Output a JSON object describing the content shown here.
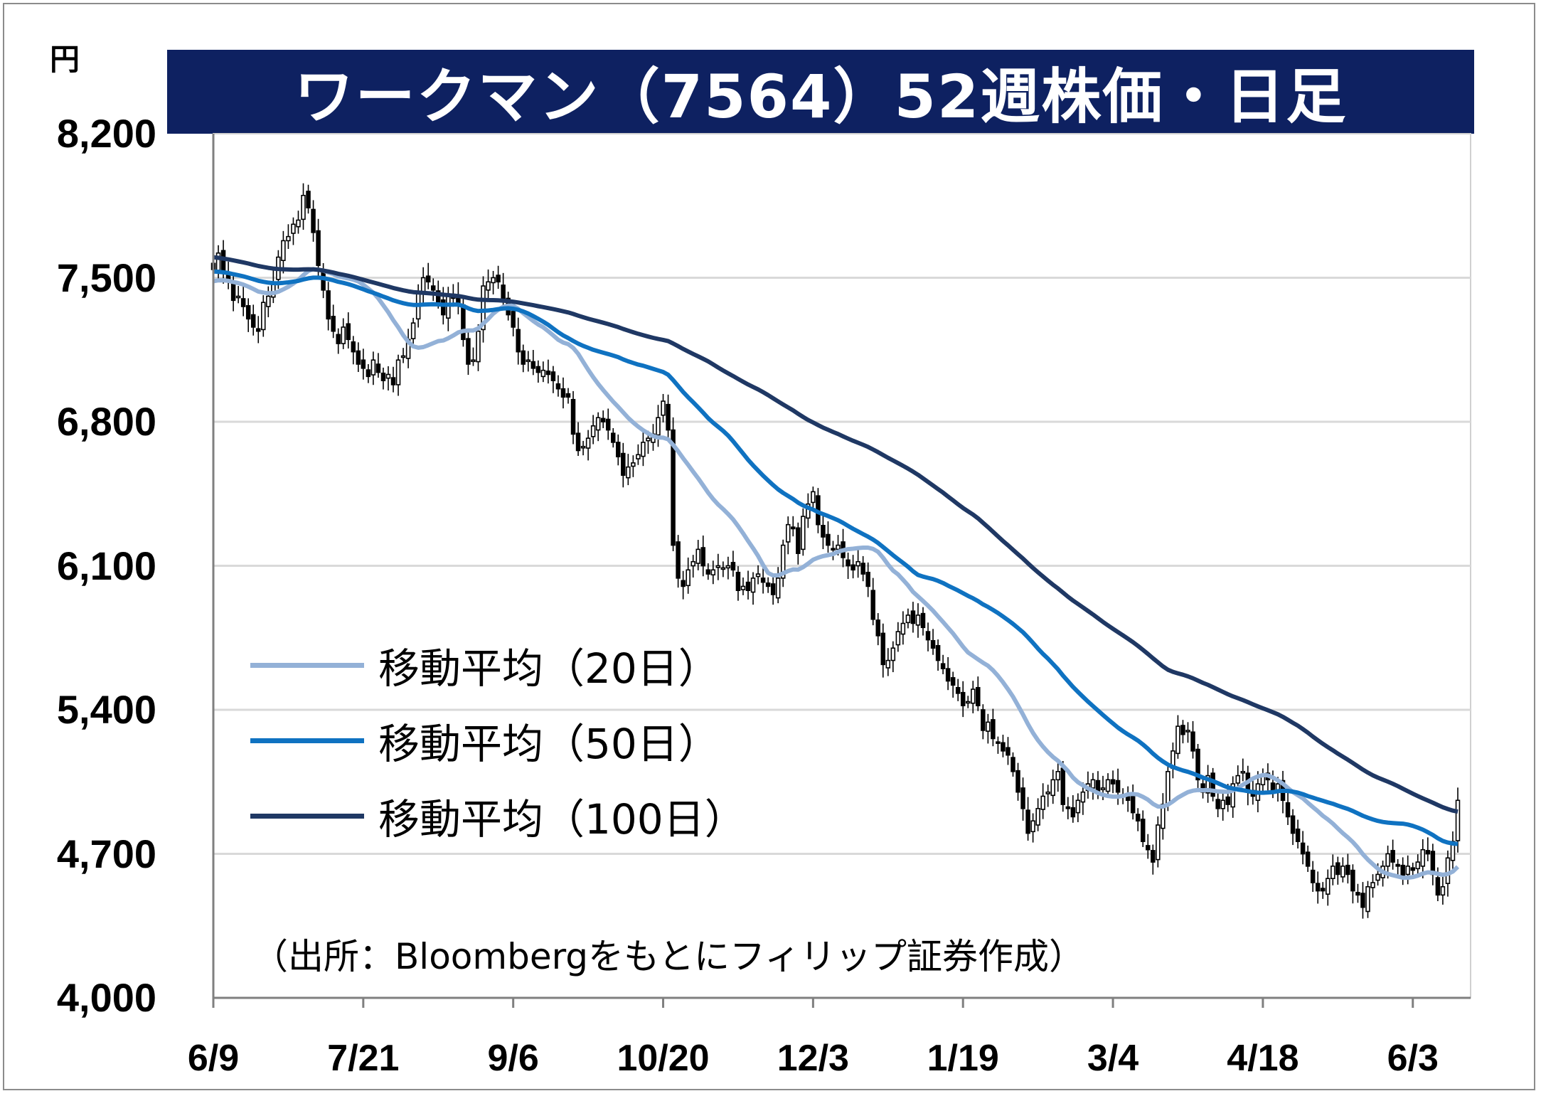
{
  "title": "ワークマン（7564）52週株価・日足",
  "unit": "円",
  "source": "（出所：Bloombergをもとにフィリップ証券作成）",
  "colors": {
    "title_bg": "#0e2161",
    "ma20": "#93b1d7",
    "ma50": "#0f72c1",
    "ma100": "#1f3864",
    "candle": "#000000",
    "grid": "#d9d9d9"
  },
  "chart_data": {
    "type": "candlestick",
    "ylim": [
      4000,
      8200
    ],
    "y_ticks": [
      "8,200",
      "7,500",
      "6,800",
      "6,100",
      "5,400",
      "4,700",
      "4,000"
    ],
    "y_tick_values": [
      8200,
      7500,
      6800,
      6100,
      5400,
      4700,
      4000
    ],
    "x_ticks": [
      "6/9",
      "7/21",
      "9/6",
      "10/20",
      "12/3",
      "1/19",
      "3/4",
      "4/18",
      "6/3"
    ],
    "x_tick_index": [
      0,
      30,
      60,
      90,
      120,
      150,
      180,
      210,
      240
    ],
    "grid": true,
    "legend": [
      {
        "name": "移動平均（20日）",
        "key": "ma20"
      },
      {
        "name": "移動平均（50日）",
        "key": "ma50"
      },
      {
        "name": "移動平均（100日）",
        "key": "ma100"
      }
    ],
    "close": [
      7540,
      7620,
      7530,
      7480,
      7390,
      7410,
      7360,
      7300,
      7260,
      7240,
      7380,
      7410,
      7480,
      7600,
      7680,
      7700,
      7760,
      7780,
      7900,
      7840,
      7720,
      7560,
      7440,
      7300,
      7240,
      7180,
      7260,
      7200,
      7140,
      7080,
      7060,
      7020,
      7100,
      7040,
      7000,
      7030,
      6980,
      7100,
      7120,
      7200,
      7280,
      7430,
      7500,
      7480,
      7440,
      7380,
      7320,
      7420,
      7400,
      7380,
      7200,
      7080,
      7100,
      7240,
      7460,
      7480,
      7500,
      7480,
      7400,
      7320,
      7260,
      7140,
      7080,
      7100,
      7060,
      7040,
      7050,
      7030,
      7000,
      6960,
      6920,
      6920,
      6740,
      6660,
      6680,
      6720,
      6780,
      6820,
      6800,
      6760,
      6700,
      6630,
      6540,
      6580,
      6600,
      6640,
      6700,
      6720,
      6740,
      6820,
      6900,
      6760,
      6200,
      6040,
      6000,
      6080,
      6120,
      6180,
      6100,
      6060,
      6080,
      6100,
      6090,
      6100,
      6080,
      5980,
      6000,
      5980,
      6040,
      6060,
      6020,
      6000,
      5960,
      6040,
      6200,
      6300,
      6280,
      6160,
      6340,
      6400,
      6460,
      6300,
      6240,
      6200,
      6180,
      6200,
      6140,
      6100,
      6080,
      6120,
      6060,
      6000,
      5840,
      5760,
      5620,
      5640,
      5700,
      5780,
      5820,
      5860,
      5820,
      5860,
      5800,
      5740,
      5700,
      5640,
      5600,
      5540,
      5520,
      5480,
      5420,
      5440,
      5500,
      5420,
      5300,
      5340,
      5260,
      5240,
      5200,
      5180,
      5100,
      5000,
      4920,
      4800,
      4860,
      4920,
      4980,
      5000,
      5060,
      5100,
      4940,
      4920,
      4880,
      4960,
      5000,
      5040,
      5060,
      5000,
      5020,
      5060,
      5040,
      5000,
      4980,
      4960,
      4900,
      4860,
      4760,
      4720,
      4660,
      4840,
      4940,
      5100,
      5200,
      5320,
      5280,
      5300,
      5200,
      5060,
      5000,
      5080,
      4980,
      4920,
      4960,
      4940,
      5040,
      5080,
      5100,
      5000,
      4980,
      5040,
      5080,
      5060,
      5000,
      5040,
      4960,
      4880,
      4800,
      4760,
      4700,
      4640,
      4560,
      4520,
      4520,
      4580,
      4640,
      4600,
      4640,
      4600,
      4520,
      4500,
      4440,
      4540,
      4560,
      4600,
      4640,
      4700,
      4660,
      4640,
      4580,
      4640,
      4620,
      4660,
      4720,
      4700,
      4600,
      4500,
      4540,
      4680,
      4760,
      4960
    ]
  }
}
